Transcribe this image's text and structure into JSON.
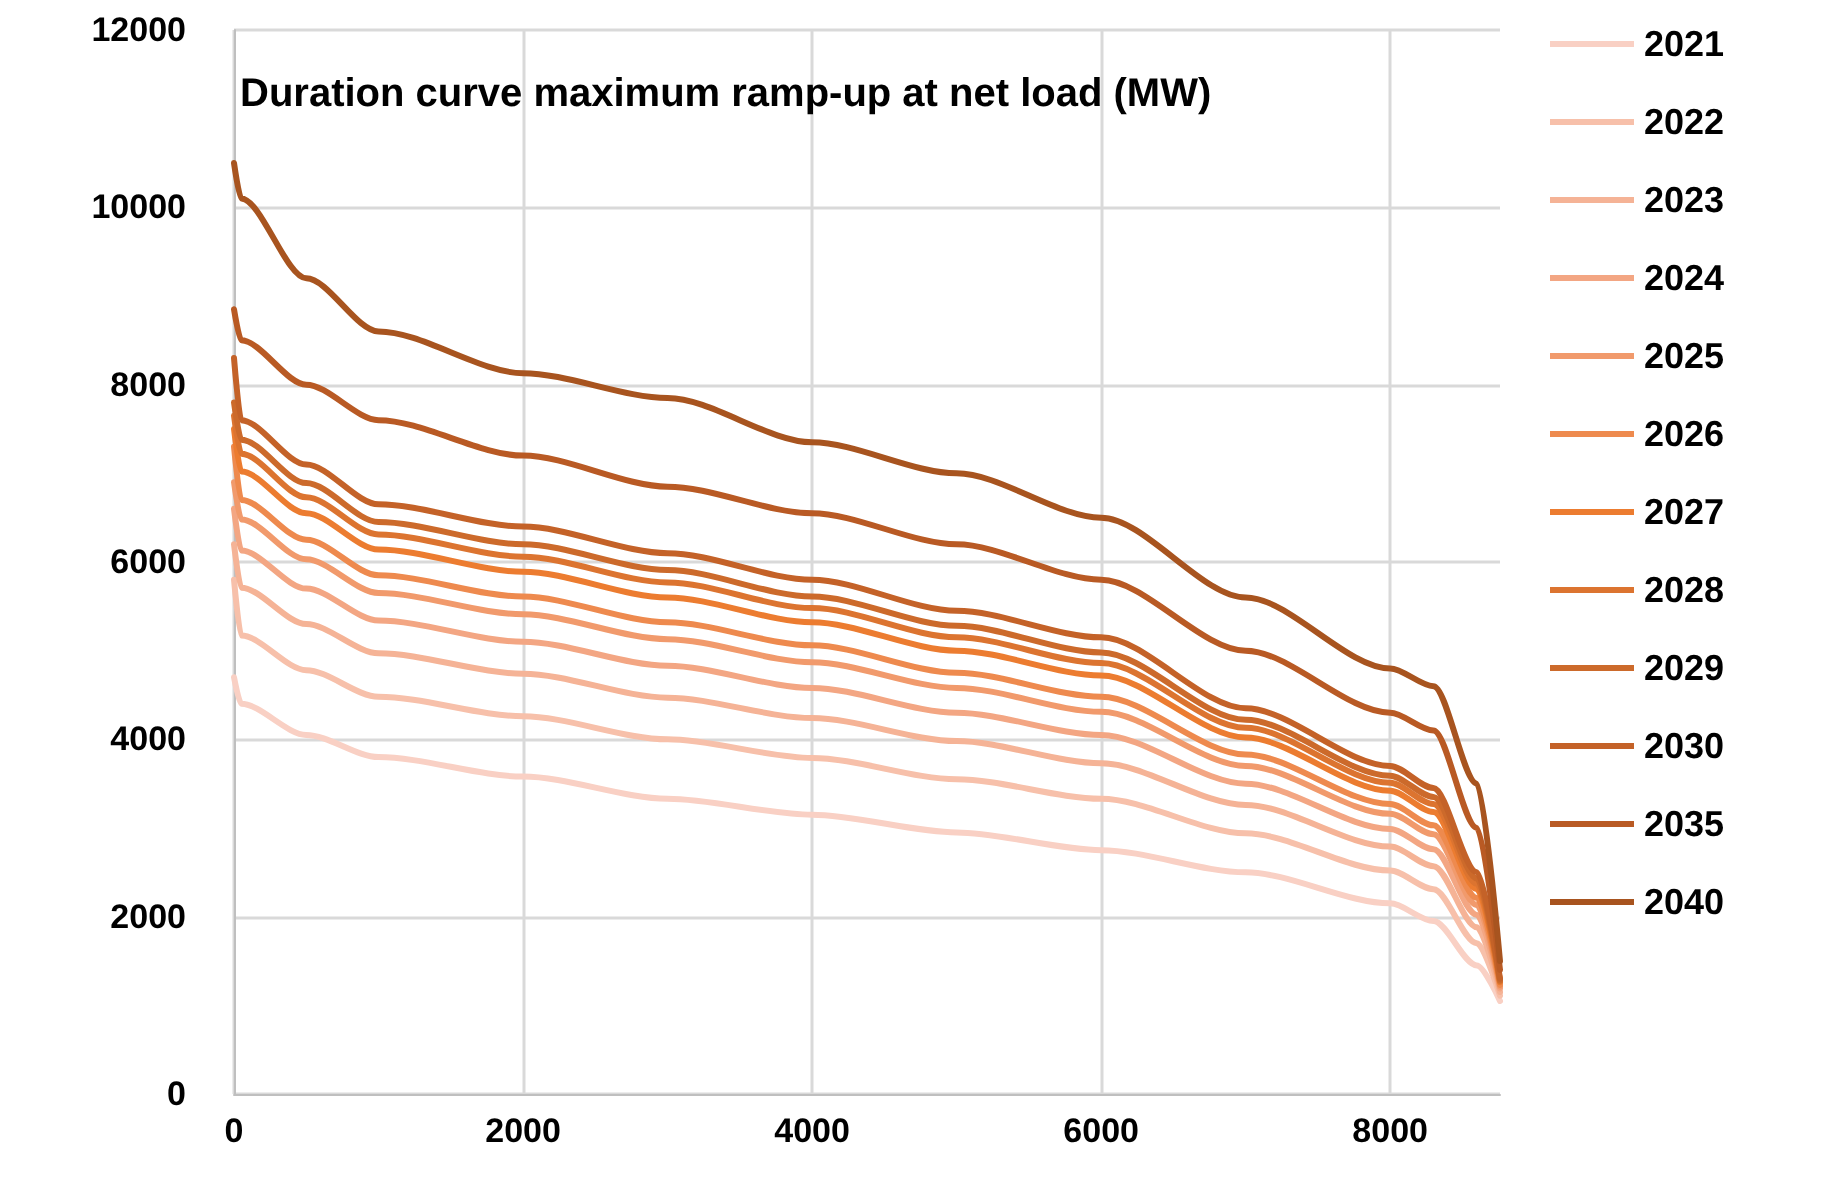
{
  "chart_data": {
    "type": "line",
    "title": "Duration curve maximum ramp-up at net load (MW)",
    "x": [
      0,
      50,
      500,
      1000,
      2000,
      3000,
      4000,
      5000,
      6000,
      7000,
      8000,
      8300,
      8600,
      8760
    ],
    "series": [
      {
        "name": "2021",
        "color": "#f9d0c4",
        "values": [
          4700,
          4400,
          4050,
          3800,
          3580,
          3330,
          3150,
          2950,
          2750,
          2500,
          2150,
          1950,
          1450,
          1050
        ]
      },
      {
        "name": "2022",
        "color": "#f7c0aa",
        "values": [
          5800,
          5170,
          4780,
          4480,
          4260,
          4000,
          3790,
          3550,
          3330,
          2940,
          2520,
          2310,
          1700,
          1110
        ]
      },
      {
        "name": "2023",
        "color": "#f5b396",
        "values": [
          6200,
          5710,
          5300,
          4970,
          4740,
          4470,
          4240,
          3980,
          3730,
          3260,
          2790,
          2570,
          1880,
          1150
        ]
      },
      {
        "name": "2024",
        "color": "#f3a683",
        "values": [
          6600,
          6130,
          5700,
          5340,
          5100,
          4830,
          4580,
          4300,
          4050,
          3500,
          2990,
          2760,
          2020,
          1190
        ]
      },
      {
        "name": "2025",
        "color": "#f19a6c",
        "values": [
          6900,
          6480,
          6030,
          5650,
          5410,
          5130,
          4870,
          4580,
          4310,
          3700,
          3160,
          2930,
          2130,
          1210
        ]
      },
      {
        "name": "2026",
        "color": "#ee8a4e",
        "values": [
          7300,
          6700,
          6250,
          5850,
          5610,
          5320,
          5060,
          4750,
          4480,
          3830,
          3270,
          3030,
          2210,
          1230
        ]
      },
      {
        "name": "2027",
        "color": "#ec7c30",
        "values": [
          7500,
          7020,
          6550,
          6140,
          5890,
          5600,
          5320,
          5000,
          4720,
          4020,
          3420,
          3180,
          2310,
          1260
        ]
      },
      {
        "name": "2028",
        "color": "#dc7430",
        "values": [
          7650,
          7220,
          6730,
          6310,
          6060,
          5770,
          5480,
          5150,
          4860,
          4130,
          3510,
          3270,
          2370,
          1270
        ]
      },
      {
        "name": "2029",
        "color": "#cc6a2b",
        "values": [
          7800,
          7380,
          6890,
          6450,
          6200,
          5910,
          5610,
          5280,
          4980,
          4220,
          3590,
          3350,
          2430,
          1280
        ]
      },
      {
        "name": "2030",
        "color": "#c46228",
        "values": [
          8300,
          7600,
          7100,
          6650,
          6400,
          6100,
          5800,
          5450,
          5150,
          4350,
          3700,
          3450,
          2500,
          1300
        ]
      },
      {
        "name": "2035",
        "color": "#b95a24",
        "values": [
          8850,
          8500,
          8000,
          7600,
          7200,
          6850,
          6550,
          6200,
          5800,
          5000,
          4300,
          4100,
          3000,
          1400
        ]
      },
      {
        "name": "2040",
        "color": "#a8541f",
        "values": [
          10500,
          10100,
          9200,
          8600,
          8130,
          7850,
          7350,
          7000,
          6500,
          5600,
          4800,
          4600,
          3500,
          1500
        ]
      }
    ],
    "xlim": [
      0,
      8760
    ],
    "xticks": [
      0,
      2000,
      4000,
      6000,
      8000
    ],
    "ylim": [
      0,
      12000
    ],
    "yticks": [
      0,
      2000,
      4000,
      6000,
      8000,
      10000,
      12000
    ],
    "grid": true,
    "legend": "right",
    "marker": "none",
    "line_style": "solid"
  }
}
